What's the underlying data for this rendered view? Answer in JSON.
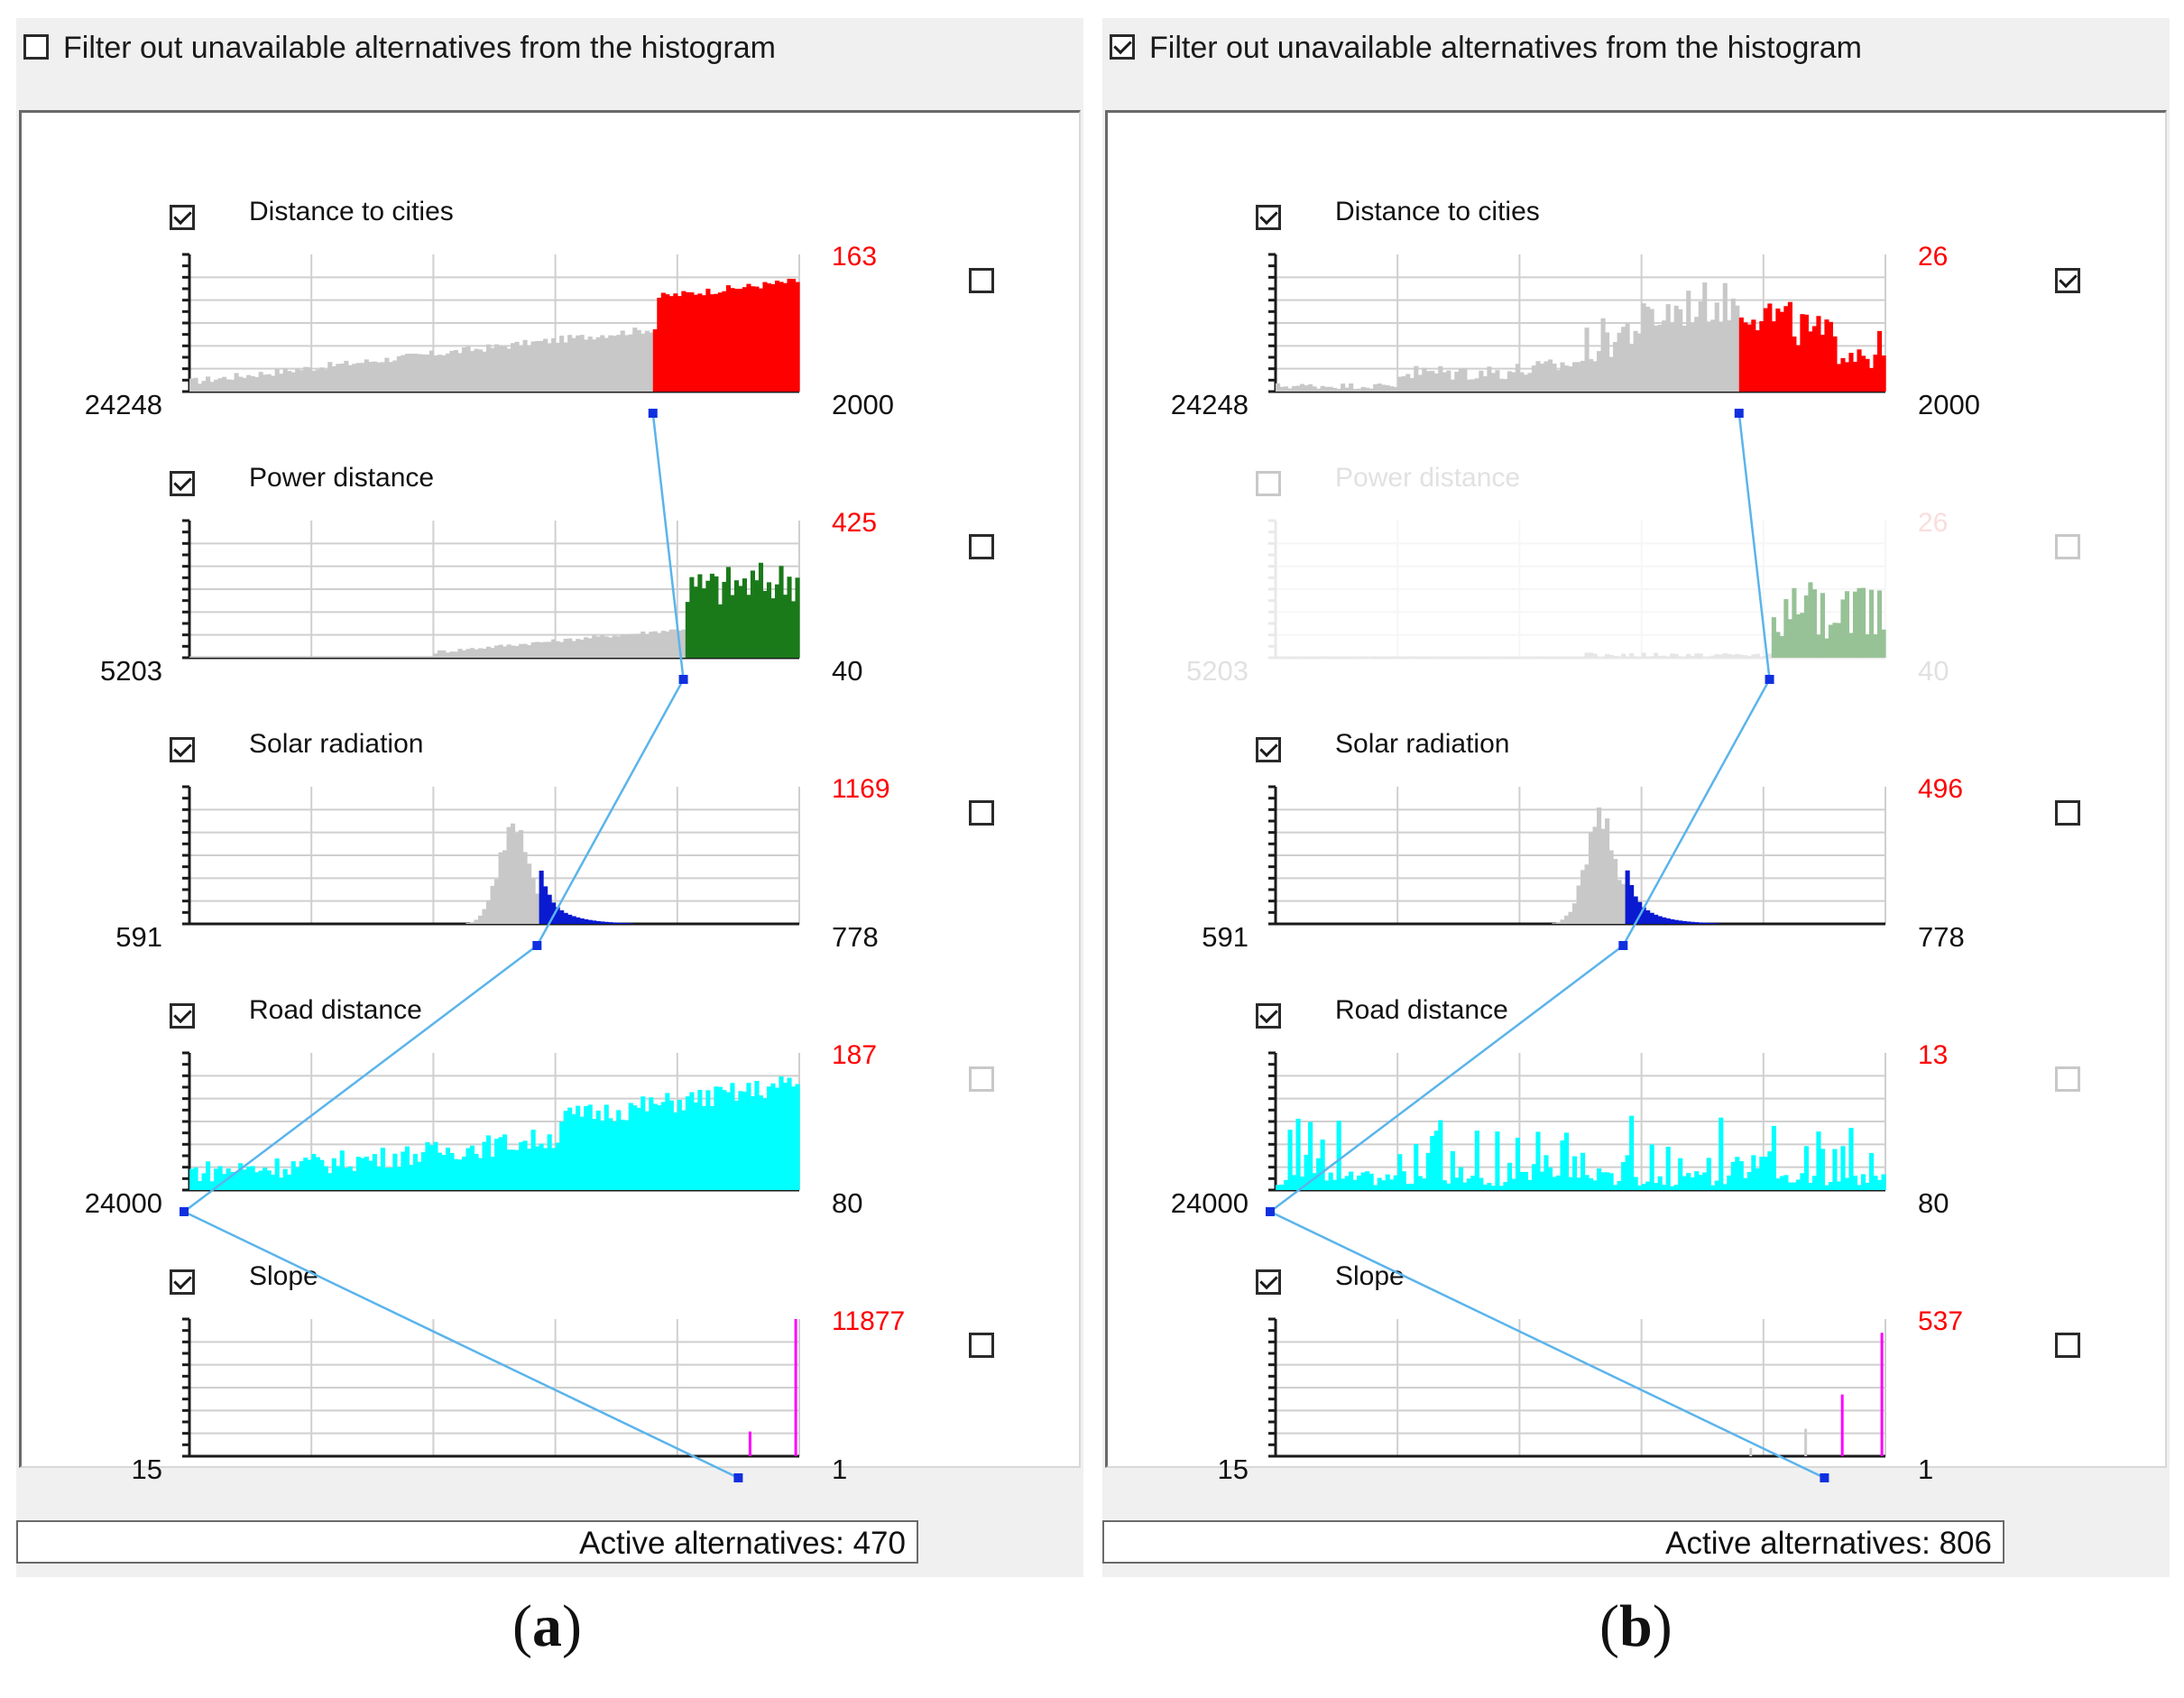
{
  "panels": [
    {
      "caption_letter": "a",
      "filter_label": "Filter out unavailable alternatives from the histogram",
      "filter_checked": false,
      "active_label": "Active alternatives: 470",
      "criteria": [
        {
          "name": "Distance to cities",
          "enabled": true,
          "left_value": "24248",
          "max_count": "163",
          "right_value": "2000",
          "side_checked": false,
          "side_dim": false,
          "color": "#ff0000",
          "split": 0.76,
          "shape": "rise"
        },
        {
          "name": "Power distance",
          "enabled": true,
          "left_value": "5203",
          "max_count": "425",
          "right_value": "40",
          "side_checked": false,
          "side_dim": false,
          "color": "#1a7a1a",
          "split": 0.81,
          "shape": "tail"
        },
        {
          "name": "Solar radiation",
          "enabled": true,
          "left_value": "591",
          "max_count": "1169",
          "right_value": "778",
          "side_checked": false,
          "side_dim": false,
          "color": "#0a1ad0",
          "split": 0.57,
          "shape": "peak"
        },
        {
          "name": "Road distance",
          "enabled": true,
          "left_value": "24000",
          "max_count": "187",
          "right_value": "80",
          "side_checked": false,
          "side_dim": true,
          "color": "#00ffff",
          "split": 0.0,
          "shape": "cyanrise"
        },
        {
          "name": "Slope",
          "enabled": true,
          "left_value": "15",
          "max_count": "11877",
          "right_value": "1",
          "side_checked": false,
          "side_dim": false,
          "color": "#ff00ff",
          "split": 0.9,
          "shape": "spikes"
        }
      ],
      "connector_markers": [
        0.76,
        0.81,
        0.57,
        0.0,
        0.9
      ]
    },
    {
      "caption_letter": "b",
      "filter_label": "Filter out unavailable alternatives from the histogram",
      "filter_checked": true,
      "active_label": "Active alternatives: 806",
      "criteria": [
        {
          "name": "Distance to cities",
          "enabled": true,
          "left_value": "24248",
          "max_count": "26",
          "right_value": "2000",
          "side_checked": true,
          "side_dim": false,
          "color": "#ff0000",
          "split": 0.76,
          "shape": "noisy"
        },
        {
          "name": "Power distance",
          "enabled": false,
          "left_value": "5203",
          "max_count": "26",
          "right_value": "40",
          "side_checked": false,
          "side_dim": true,
          "color": "#1a7a1a",
          "split": 0.81,
          "shape": "sparse"
        },
        {
          "name": "Solar radiation",
          "enabled": true,
          "left_value": "591",
          "max_count": "496",
          "right_value": "778",
          "side_checked": false,
          "side_dim": false,
          "color": "#0a1ad0",
          "split": 0.57,
          "shape": "peak"
        },
        {
          "name": "Road distance",
          "enabled": true,
          "left_value": "24000",
          "max_count": "13",
          "right_value": "80",
          "side_checked": false,
          "side_dim": true,
          "color": "#00ffff",
          "split": 0.0,
          "shape": "cyannoisy"
        },
        {
          "name": "Slope",
          "enabled": true,
          "left_value": "15",
          "max_count": "537",
          "right_value": "1",
          "side_checked": false,
          "side_dim": false,
          "color": "#ff00ff",
          "split": 0.9,
          "shape": "spikes2"
        }
      ],
      "connector_markers": [
        0.76,
        0.81,
        0.57,
        0.0,
        0.9
      ]
    }
  ],
  "colors": {
    "connector": "#5ab4ec",
    "marker": "#1030e0",
    "count_label": "#ff0000",
    "selected_gray": "#c8c8c8"
  }
}
